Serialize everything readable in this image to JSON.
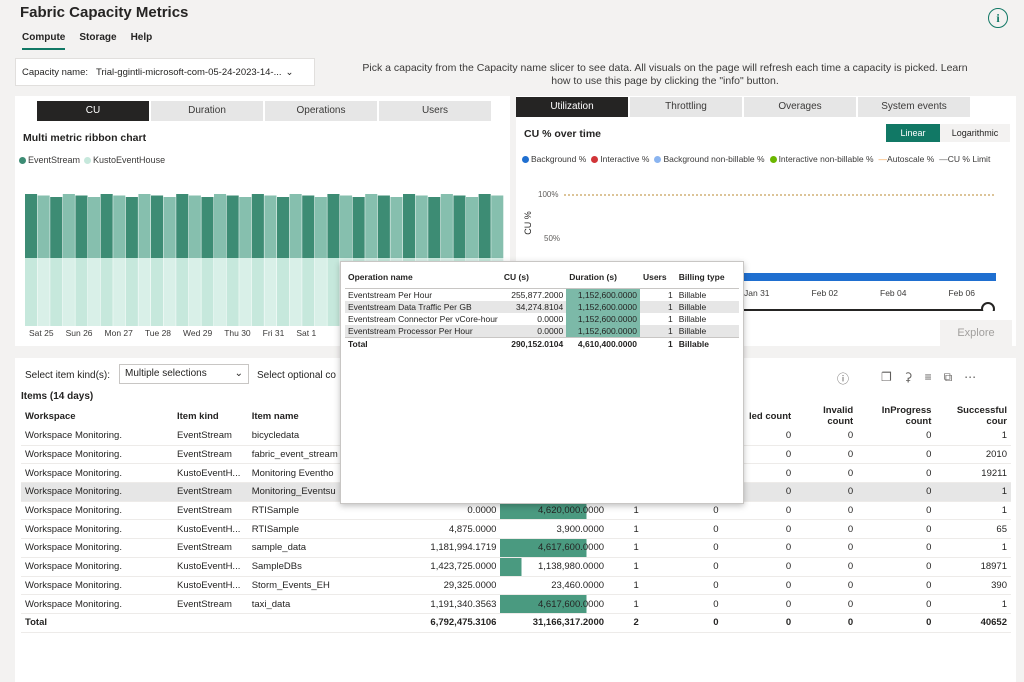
{
  "app_title": "Fabric Capacity Metrics",
  "nav": [
    {
      "label": "Compute",
      "active": true
    },
    {
      "label": "Storage",
      "active": false
    },
    {
      "label": "Help",
      "active": false
    }
  ],
  "capacity": {
    "label": "Capacity name:",
    "value": "Trial-ggintli-microsoft-com-05-24-2023-14-..."
  },
  "caption": "Pick a capacity from the Capacity name slicer to see data. All visuals on the page will refresh each time a capacity is picked. Learn how to use this page by clicking the \"info\" button.",
  "left_tabs": [
    "CU",
    "Duration",
    "Operations",
    "Users"
  ],
  "ribbon": {
    "title": "Multi metric ribbon chart",
    "legend": [
      {
        "name": "EventStream",
        "color": "#3d8c74"
      },
      {
        "name": "KustoEventHouse",
        "color": "#c6e8dc"
      }
    ],
    "x_labels": [
      "Sat 25",
      "Sun 26",
      "Mon 27",
      "Tue 28",
      "Wed 29",
      "Thu 30",
      "Fri 31",
      "Sat 1"
    ]
  },
  "right_tabs": [
    "Utilization",
    "Throttling",
    "Overages",
    "System events"
  ],
  "cu_chart": {
    "title": "CU % over time",
    "scale_buttons": [
      "Linear",
      "Logarithmic"
    ],
    "legend": [
      {
        "name": "Background %",
        "color": "#1f6fd0"
      },
      {
        "name": "Interactive %",
        "color": "#d13438"
      },
      {
        "name": "Background non-billable %",
        "color": "#8ab4f0"
      },
      {
        "name": "Interactive non-billable %",
        "color": "#6bb700"
      },
      {
        "name": "Autoscale %",
        "color": "#f7a24b"
      },
      {
        "name": "CU % Limit",
        "color": "#605e5c"
      }
    ],
    "ylabel": "CU %",
    "y_ticks": [
      "100%",
      "50%"
    ],
    "x_labels": [
      "Jan 31",
      "Feb 02",
      "Feb 04",
      "Feb 06"
    ],
    "explore": "Explore"
  },
  "filters": {
    "item_kind_label": "Select item kind(s):",
    "item_kind_value": "Multiple selections",
    "optional_label": "Select optional co"
  },
  "items": {
    "title": "Items (14 days)",
    "headers": [
      "Workspace",
      "Item kind",
      "Item name",
      "",
      "",
      "",
      "",
      "led count",
      "Invalid count",
      "InProgress count",
      "Successful cour"
    ],
    "rows": [
      [
        "Workspace Monitoring.",
        "EventStream",
        "bicycledata",
        "",
        "",
        "",
        "",
        "0",
        "0",
        "0",
        "1"
      ],
      [
        "Workspace Monitoring.",
        "EventStream",
        "fabric_event_stream",
        "",
        "",
        "",
        "",
        "0",
        "0",
        "0",
        "2010"
      ],
      [
        "Workspace Monitoring.",
        "KustoEventH...",
        "Monitoring Eventho",
        "",
        "",
        "",
        "",
        "0",
        "0",
        "0",
        "19211"
      ],
      [
        "Workspace Monitoring.",
        "EventStream",
        "Monitoring_Eventsu",
        "",
        "",
        "",
        "",
        "0",
        "0",
        "0",
        "1"
      ],
      [
        "Workspace Monitoring.",
        "EventStream",
        "RTISample",
        "0.0000",
        "4,620,000.0000",
        "1",
        "0",
        "0",
        "0",
        "0",
        "1"
      ],
      [
        "Workspace Monitoring.",
        "KustoEventH...",
        "RTISample",
        "4,875.0000",
        "3,900.0000",
        "1",
        "0",
        "0",
        "0",
        "0",
        "65"
      ],
      [
        "Workspace Monitoring.",
        "EventStream",
        "sample_data",
        "1,181,994.1719",
        "4,617,600.0000",
        "1",
        "0",
        "0",
        "0",
        "0",
        "1"
      ],
      [
        "Workspace Monitoring.",
        "KustoEventH...",
        "SampleDBs",
        "1,423,725.0000",
        "1,138,980.0000",
        "1",
        "0",
        "0",
        "0",
        "0",
        "18971"
      ],
      [
        "Workspace Monitoring.",
        "KustoEventH...",
        "Storm_Events_EH",
        "29,325.0000",
        "23,460.0000",
        "1",
        "0",
        "0",
        "0",
        "0",
        "390"
      ],
      [
        "Workspace Monitoring.",
        "EventStream",
        "taxi_data",
        "1,191,340.3563",
        "4,617,600.0000",
        "1",
        "0",
        "0",
        "0",
        "0",
        "1"
      ]
    ],
    "bar_fraction": [
      0,
      0,
      0,
      0,
      1.0,
      0,
      1.0,
      0.25,
      0,
      1.0
    ],
    "total": [
      "Total",
      "",
      "",
      "6,792,475.3106",
      "31,166,317.2000",
      "2",
      "0",
      "0",
      "0",
      "0",
      "40652"
    ]
  },
  "tooltip": {
    "headers": [
      "Operation name",
      "CU (s)",
      "Duration (s)",
      "Users",
      "Billing type"
    ],
    "rows": [
      [
        "Eventstream Per Hour",
        "255,877.2000",
        "1,152,600.0000",
        "1",
        "Billable"
      ],
      [
        "Eventstream Data Traffic Per GB",
        "34,274.8104",
        "1,152,600.0000",
        "1",
        "Billable"
      ],
      [
        "Eventstream Connector Per vCore-hour",
        "0.0000",
        "1,152,600.0000",
        "1",
        "Billable"
      ],
      [
        "Eventstream Processor Per Hour",
        "0.0000",
        "1,152,600.0000",
        "1",
        "Billable"
      ]
    ],
    "total": [
      "Total",
      "290,152.0104",
      "4,610,400.0000",
      "1",
      "Billable"
    ]
  }
}
